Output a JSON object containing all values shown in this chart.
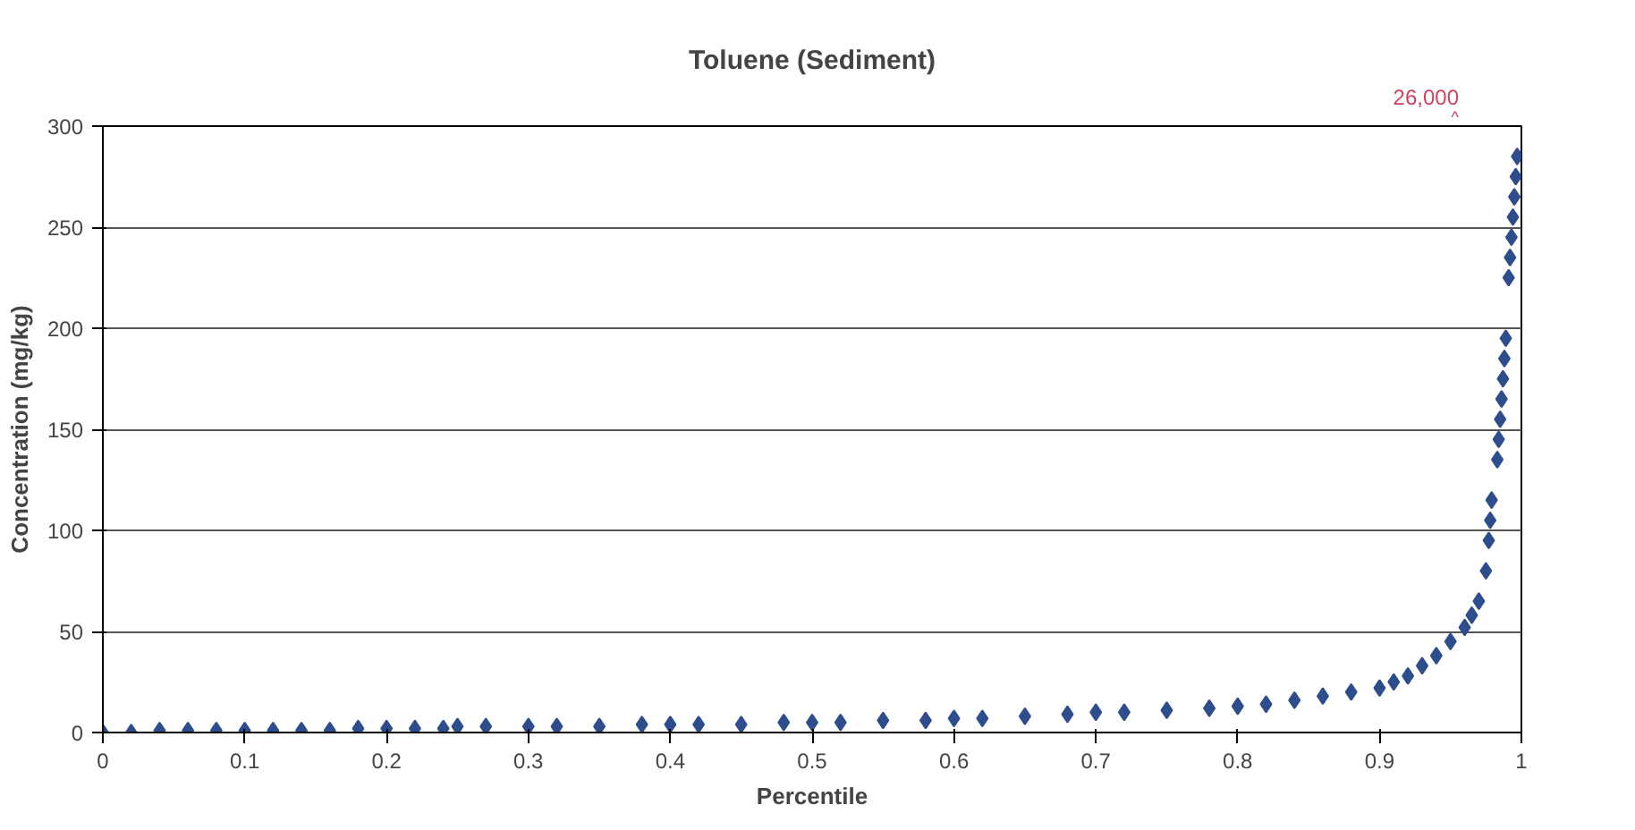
{
  "chart_data": {
    "type": "scatter",
    "title": "Toluene (Sediment)",
    "xlabel": "Percentile",
    "ylabel": "Concentration (mg/kg)",
    "x": [
      0,
      0.02,
      0.04,
      0.06,
      0.08,
      0.1,
      0.12,
      0.14,
      0.16,
      0.18,
      0.2,
      0.22,
      0.24,
      0.25,
      0.27,
      0.3,
      0.32,
      0.35,
      0.38,
      0.4,
      0.42,
      0.45,
      0.48,
      0.5,
      0.52,
      0.55,
      0.58,
      0.6,
      0.62,
      0.65,
      0.68,
      0.7,
      0.72,
      0.75,
      0.78,
      0.8,
      0.82,
      0.84,
      0.86,
      0.88,
      0.9,
      0.91,
      0.92,
      0.93,
      0.94,
      0.95,
      0.96,
      0.965,
      0.97,
      0.975,
      0.977,
      0.978,
      0.979,
      0.983,
      0.984,
      0.985,
      0.986,
      0.987,
      0.988,
      0.989,
      0.991,
      0.992,
      0.993,
      0.994,
      0.995,
      0.996,
      0.997
    ],
    "series": [
      {
        "color": "#2e4d8c",
        "values": [
          0,
          0,
          1,
          1,
          1,
          1,
          1,
          1,
          1,
          2,
          2,
          2,
          2,
          3,
          3,
          3,
          3,
          3,
          4,
          4,
          4,
          4,
          5,
          5,
          5,
          6,
          6,
          7,
          7,
          8,
          9,
          10,
          10,
          11,
          12,
          13,
          14,
          16,
          18,
          20,
          22,
          25,
          28,
          33,
          38,
          45,
          52,
          58,
          65,
          80,
          95,
          105,
          115,
          135,
          145,
          155,
          165,
          175,
          185,
          195,
          225,
          235,
          245,
          255,
          265,
          275,
          285
        ]
      }
    ],
    "xlim": [
      0,
      1
    ],
    "ylim": [
      0,
      300
    ],
    "xticks": [
      0,
      0.1,
      0.2,
      0.3,
      0.4,
      0.5,
      0.6,
      0.7,
      0.8,
      0.9,
      1
    ],
    "yticks": [
      0,
      50,
      100,
      150,
      200,
      250,
      300
    ],
    "grid": "y",
    "marker": "diamond",
    "annotations": [
      "26,000",
      "^"
    ]
  }
}
